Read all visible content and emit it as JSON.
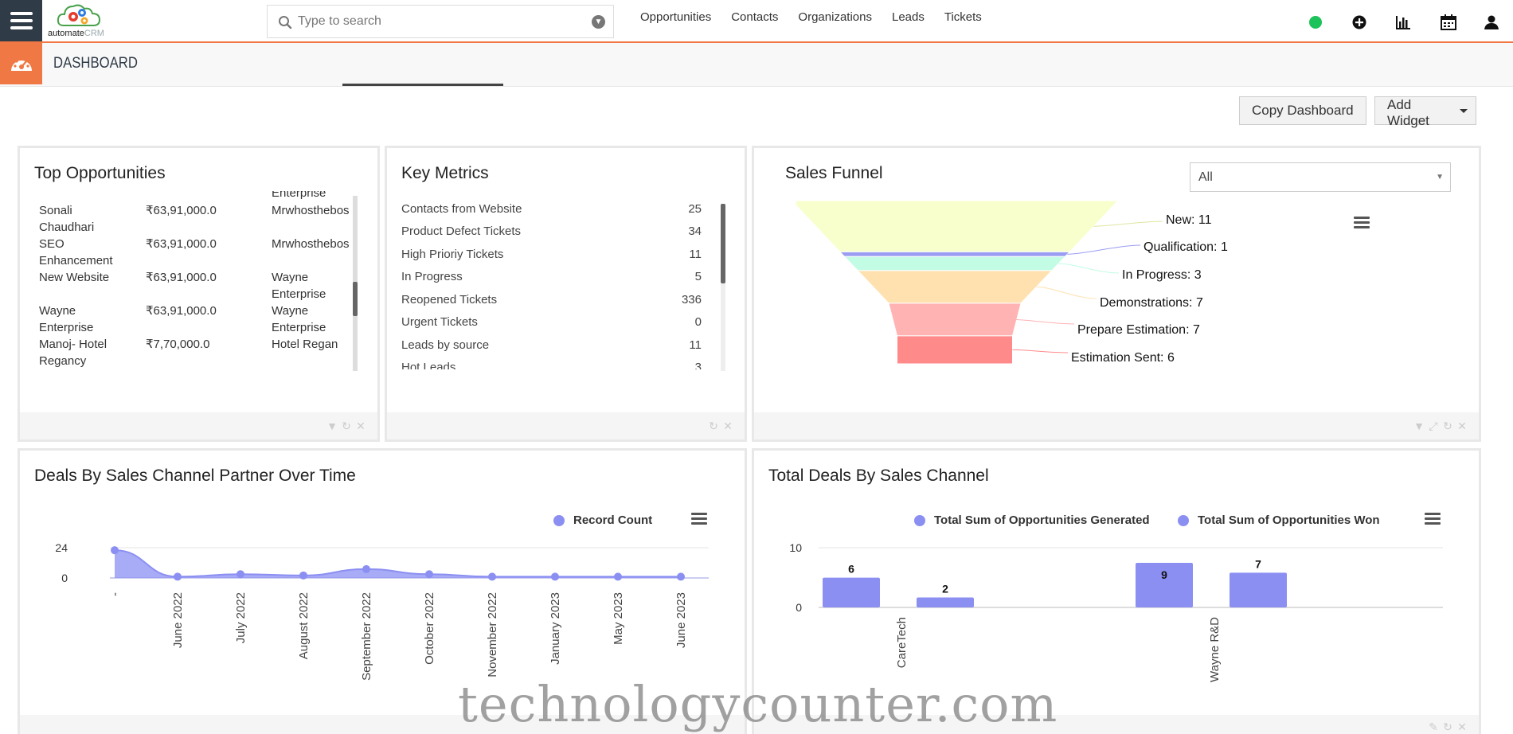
{
  "app": {
    "logo_text_main": "automate",
    "logo_text_sub": "CRM"
  },
  "search": {
    "placeholder": "Type to search"
  },
  "nav": [
    "Opportunities",
    "Contacts",
    "Organizations",
    "Leads",
    "Tickets"
  ],
  "colors": {
    "accent": "#f07844",
    "dark": "#2f3b47",
    "status": "#1dc25a",
    "series": "#8b8ff2"
  },
  "icons": [
    "menu-icon",
    "search-icon",
    "chevron-down-icon",
    "status-dot",
    "plus-circle-icon",
    "bar-chart-icon",
    "calendar-icon",
    "user-icon",
    "dashboard-gauge-icon"
  ],
  "page_title": "DASHBOARD",
  "toolbar": {
    "copy_label": "Copy Dashboard",
    "add_widget_label": "Add Widget"
  },
  "top_opportunities": {
    "title": "Top Opportunities",
    "rows": [
      {
        "name": "",
        "amount": "",
        "org": "Enterprise"
      },
      {
        "name": "Sonali Chaudhari",
        "amount": "₹63,91,000.0",
        "org": "Mrwhosthebos"
      },
      {
        "name": "SEO Enhancement",
        "amount": "₹63,91,000.0",
        "org": "Mrwhosthebos"
      },
      {
        "name": "New Website",
        "amount": "₹63,91,000.0",
        "org": "Wayne Enterprise"
      },
      {
        "name": "Wayne Enterprise",
        "amount": "₹63,91,000.0",
        "org": "Wayne Enterprise"
      },
      {
        "name": "Manoj- Hotel Regancy",
        "amount": "₹7,70,000.0",
        "org": "Hotel Regan"
      }
    ]
  },
  "key_metrics": {
    "title": "Key Metrics",
    "rows": [
      {
        "label": "Contacts from Website",
        "value": "25"
      },
      {
        "label": "Product Defect Tickets",
        "value": "34"
      },
      {
        "label": "High Prioriy Tickets",
        "value": "11"
      },
      {
        "label": "In Progress",
        "value": "5"
      },
      {
        "label": "Reopened Tickets",
        "value": "336"
      },
      {
        "label": "Urgent Tickets",
        "value": "0"
      },
      {
        "label": "Leads by source",
        "value": "11"
      },
      {
        "label": "Hot Leads",
        "value": "3"
      }
    ]
  },
  "sales_funnel": {
    "title": "Sales Funnel",
    "filter_value": "All",
    "stage_labels": [
      "New: 11",
      "Qualification: 1",
      "In Progress: 3",
      "Demonstrations: 7",
      "Prepare Estimation: 7",
      "Estimation Sent: 6"
    ]
  },
  "deals_over_time": {
    "title": "Deals By Sales Channel Partner Over Time",
    "legend": "Record Count"
  },
  "total_deals": {
    "title": "Total Deals By Sales Channel",
    "legend_1": "Total Sum of Opportunities Generated",
    "legend_2": "Total Sum of Opportunities Won"
  },
  "chart_data": [
    {
      "type": "bar",
      "title": "Sales Funnel",
      "categories": [
        "New",
        "Qualification",
        "In Progress",
        "Demonstrations",
        "Prepare Estimation",
        "Estimation Sent"
      ],
      "values": [
        11,
        1,
        3,
        7,
        7,
        6
      ],
      "colors": [
        "#f8ffcc",
        "#9a9df2",
        "#c2fce4",
        "#ffe1b0",
        "#ffb3b3",
        "#ff8a8a"
      ]
    },
    {
      "type": "area",
      "title": "Deals By Sales Channel Partner Over Time",
      "x": [
        "-",
        "June 2022",
        "July 2022",
        "August 2022",
        "September 2022",
        "October 2022",
        "November 2022",
        "January 2023",
        "May 2023",
        "June 2023"
      ],
      "series": [
        {
          "name": "Record Count",
          "values": [
            22,
            1,
            3,
            2,
            7,
            3,
            1,
            1,
            1,
            1
          ]
        }
      ],
      "yticks": [
        "0",
        "24"
      ],
      "ylim": [
        0,
        24
      ]
    },
    {
      "type": "bar",
      "title": "Total Deals By Sales Channel",
      "categories": [
        "CareTech",
        "Wayne R&D"
      ],
      "series": [
        {
          "name": "Total Sum of Opportunities Generated",
          "values": [
            6,
            9
          ]
        },
        {
          "name": "Total Sum of Opportunities Won",
          "values": [
            2,
            7
          ]
        }
      ],
      "yticks": [
        "0",
        "10"
      ],
      "ylim": [
        0,
        10
      ]
    }
  ],
  "watermark": "technologycounter.com"
}
